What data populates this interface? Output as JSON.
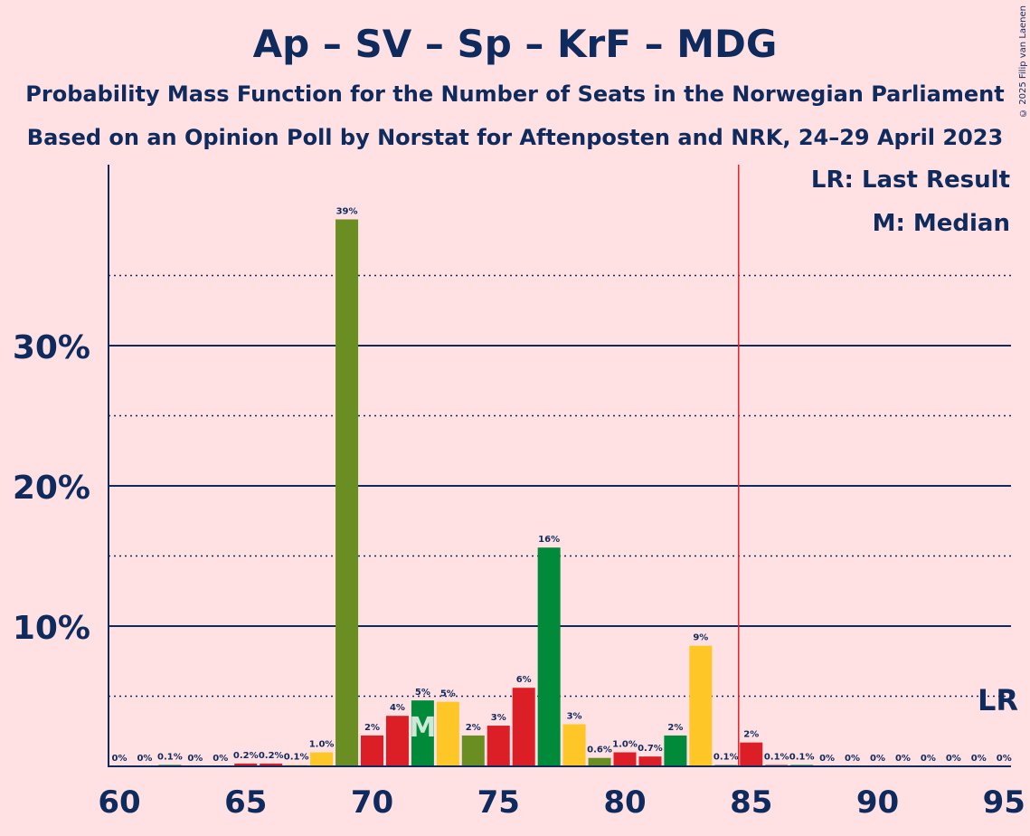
{
  "title": "Ap – SV – Sp – KrF – MDG",
  "subtitle": "Probability Mass Function for the Number of Seats in the Norwegian Parliament",
  "subtitle2": "Based on an Opinion Poll by Norstat for Aftenposten and NRK, 24–29 April 2023",
  "credit": "© 2025 Filip van Laenen",
  "legend": {
    "last_result": "LR: Last Result",
    "median": "M: Median"
  },
  "colors": {
    "background": "#FFE1E3",
    "text": "#0F2A5C",
    "last_result_line": "#E8202A",
    "parties": [
      "#6B8E23",
      "#E11C2A",
      "#008A3A",
      "#FFC627",
      "#DC1F26"
    ]
  },
  "chart_data": {
    "type": "bar",
    "x": [
      60,
      61,
      62,
      63,
      64,
      65,
      66,
      67,
      68,
      69,
      70,
      71,
      72,
      73,
      74,
      75,
      76,
      77,
      78,
      79,
      80,
      81,
      82,
      83,
      84,
      85,
      86,
      87,
      88,
      89,
      90,
      91,
      92,
      93,
      94,
      95
    ],
    "values": [
      0,
      0,
      0.1,
      0,
      0,
      0.2,
      0.2,
      0.1,
      1.0,
      39,
      2.2,
      3.6,
      4.7,
      4.6,
      2.2,
      2.9,
      5.6,
      15.6,
      3.0,
      0.6,
      1.0,
      0.7,
      2.2,
      8.6,
      0.1,
      1.7,
      0.1,
      0.1,
      0,
      0,
      0,
      0,
      0,
      0,
      0,
      0
    ],
    "data_labels": [
      "0%",
      "0%",
      "0.1%",
      "0%",
      "0%",
      "0.2%",
      "0.2%",
      "0.1%",
      "1.0%",
      "39%",
      "2%",
      "4%",
      "5%",
      "5%",
      "2%",
      "3%",
      "6%",
      "16%",
      "3%",
      "0.6%",
      "1.0%",
      "0.7%",
      "2%",
      "9%",
      "0.1%",
      "2%",
      "0.1%",
      "0.1%",
      "0%",
      "0%",
      "0%",
      "0%",
      "0%",
      "0%",
      "0%",
      "0%"
    ],
    "bar_colors": [
      "#6B8E23",
      "#DC1F26",
      "#008A3A",
      "#FFC627",
      "#6B8E23",
      "#DC1F26",
      "#DC1F26",
      "#FFC627",
      "#FFC627",
      "#6B8E23",
      "#DC1F26",
      "#DC1F26",
      "#008A3A",
      "#FFC627",
      "#6B8E23",
      "#DC1F26",
      "#DC1F26",
      "#008A3A",
      "#FFC627",
      "#6B8E23",
      "#DC1F26",
      "#DC1F26",
      "#008A3A",
      "#FFC627",
      "#6B8E23",
      "#DC1F26",
      "#DC1F26",
      "#008A3A",
      "#FFC627",
      "#6B8E23",
      "#DC1F26",
      "#DC1F26",
      "#008A3A",
      "#FFC627",
      "#6B8E23",
      "#DC1F26"
    ],
    "x_ticks": [
      60,
      65,
      70,
      75,
      80,
      85,
      90,
      95
    ],
    "x_tick_labels": [
      "60",
      "65",
      "70",
      "75",
      "80",
      "85",
      "90",
      "95"
    ],
    "y_ticks": [
      10,
      20,
      30
    ],
    "y_tick_labels": [
      "10%",
      "20%",
      "30%"
    ],
    "y_minor_ticks": [
      5,
      15,
      25,
      35
    ],
    "xlim": [
      60,
      95
    ],
    "ylim": [
      0,
      42.5
    ],
    "median": 72,
    "median_label": "M",
    "last_result": 85,
    "last_result_label": "LR",
    "legend_placement": "top-right",
    "grid": true
  }
}
